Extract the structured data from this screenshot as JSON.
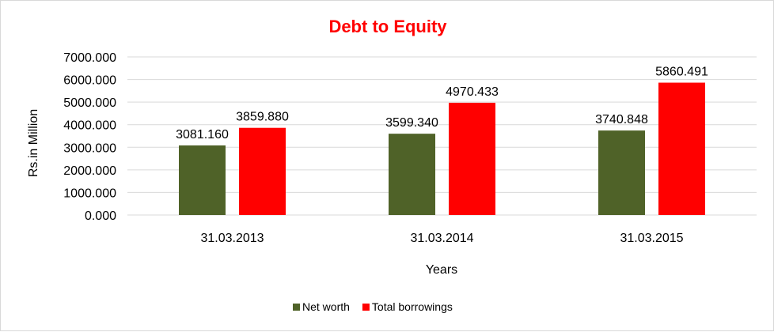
{
  "chart_data": {
    "type": "bar",
    "title": "Debt to Equity",
    "xlabel": "Years",
    "ylabel": "Rs.in Million",
    "categories": [
      "31.03.2013",
      "31.03.2014",
      "31.03.2015"
    ],
    "series": [
      {
        "name": "Net worth",
        "values": [
          3081.16,
          3599.34,
          3740.848
        ],
        "labels": [
          "3081.160",
          "3599.340",
          "3740.848"
        ],
        "color": "#4f6228"
      },
      {
        "name": "Total borrowings",
        "values": [
          3859.88,
          4970.433,
          5860.491
        ],
        "labels": [
          "3859.880",
          "4970.433",
          "5860.491"
        ],
        "color": "#ff0000"
      }
    ],
    "ylim": [
      0,
      7000
    ],
    "yticks": [
      "0.000",
      "1000.000",
      "2000.000",
      "3000.000",
      "4000.000",
      "5000.000",
      "6000.000",
      "7000.000"
    ],
    "grid": true,
    "legend_position": "bottom",
    "title_color": "#ff0000"
  }
}
